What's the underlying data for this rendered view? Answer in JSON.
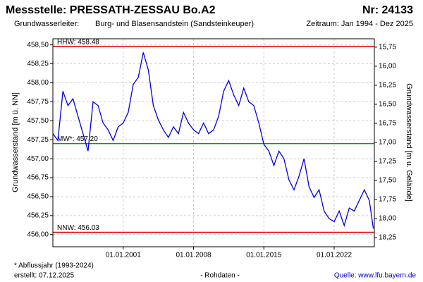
{
  "chart_data": {
    "type": "line",
    "title": "Messstelle: PRESSATH-ZESSAU Bo.A2",
    "number": "Nr: 24133",
    "aquifer_label": "Grundwasserleiter:",
    "aquifer": "Burg- und Blasensandstein (Sandsteinkeuper)",
    "period": "Zeitraum: Jan 1994 - Dez 2025",
    "ylabel": "Grundwasserstand [m ü. NN]",
    "y2label": "Grundwasserstand [m u. Gelände]",
    "footnote": "* Abflussjahr (1993-2024)",
    "created": "erstellt:  07.12.2025",
    "status": "- Rohdaten -",
    "source": "Quelle: www.lfu.bayern.de",
    "grid": true,
    "xlim": [
      1994,
      2026
    ],
    "xticks": [
      {
        "value": 2001,
        "label": "01.01.2001"
      },
      {
        "value": 2008,
        "label": "01.01.2008"
      },
      {
        "value": 2015,
        "label": "01.01.2015"
      },
      {
        "value": 2022,
        "label": "01.01.2022"
      }
    ],
    "ylim": [
      455.84,
      458.58
    ],
    "yticks": [
      {
        "value": 456,
        "label": "456,00"
      },
      {
        "value": 456.25,
        "label": "456,25"
      },
      {
        "value": 456.5,
        "label": "456,50"
      },
      {
        "value": 456.75,
        "label": "456,75"
      },
      {
        "value": 457,
        "label": "457,00"
      },
      {
        "value": 457.25,
        "label": "457,25"
      },
      {
        "value": 457.5,
        "label": "457,50"
      },
      {
        "value": 457.75,
        "label": "457,75"
      },
      {
        "value": 458,
        "label": "458,00"
      },
      {
        "value": 458.25,
        "label": "458,25"
      },
      {
        "value": 458.5,
        "label": "458,50"
      }
    ],
    "y2lim": [
      18.37,
      15.64
    ],
    "y2ticks": [
      {
        "value": 15.75,
        "label": "15,75"
      },
      {
        "value": 16,
        "label": "16,00"
      },
      {
        "value": 16.25,
        "label": "16,25"
      },
      {
        "value": 16.5,
        "label": "16,50"
      },
      {
        "value": 16.75,
        "label": "16,75"
      },
      {
        "value": 17,
        "label": "17,00"
      },
      {
        "value": 17.25,
        "label": "17,25"
      },
      {
        "value": 17.5,
        "label": "17,50"
      },
      {
        "value": 17.75,
        "label": "17,75"
      },
      {
        "value": 18,
        "label": "18,00"
      },
      {
        "value": 18.25,
        "label": "18,25"
      }
    ],
    "reference_lines": [
      {
        "value": 458.48,
        "label": "HHW: 458.48",
        "color": "#e00000"
      },
      {
        "value": 457.2,
        "label": "MW*: 457.20",
        "color": "#00a000"
      },
      {
        "value": 456.03,
        "label": "NNW: 456.03",
        "color": "#e00000"
      }
    ],
    "x": [
      1994,
      1994.5,
      1995,
      1995.5,
      1996,
      1996.5,
      1997,
      1997.5,
      1998,
      1998.5,
      1999,
      1999.5,
      2000,
      2000.5,
      2001,
      2001.5,
      2002,
      2002.5,
      2003,
      2003.5,
      2004,
      2004.5,
      2005,
      2005.5,
      2006,
      2006.5,
      2007,
      2007.5,
      2008,
      2008.5,
      2009,
      2009.5,
      2010,
      2010.5,
      2011,
      2011.5,
      2012,
      2012.5,
      2013,
      2013.5,
      2014,
      2014.5,
      2015,
      2015.5,
      2016,
      2016.5,
      2017,
      2017.5,
      2018,
      2018.5,
      2019,
      2019.5,
      2020,
      2020.5,
      2021,
      2021.5,
      2022,
      2022.5,
      2023,
      2023.5,
      2024,
      2024.5,
      2025,
      2025.5,
      2025.9
    ],
    "series": [
      {
        "color": "#0000e0",
        "values": [
          457.33,
          457.24,
          457.89,
          457.7,
          457.79,
          457.56,
          457.33,
          457.1,
          457.75,
          457.7,
          457.47,
          457.38,
          457.24,
          457.42,
          457.47,
          457.61,
          457.98,
          458.07,
          458.4,
          458.17,
          457.7,
          457.51,
          457.38,
          457.28,
          457.42,
          457.33,
          457.61,
          457.47,
          457.38,
          457.33,
          457.47,
          457.33,
          457.38,
          457.56,
          457.89,
          458.03,
          457.84,
          457.7,
          457.93,
          457.75,
          457.7,
          457.47,
          457.19,
          457.1,
          456.91,
          457.1,
          457,
          456.72,
          456.59,
          456.77,
          457,
          456.63,
          456.49,
          456.59,
          456.31,
          456.21,
          456.17,
          456.31,
          456.12,
          456.35,
          456.31,
          456.45,
          456.59,
          456.45,
          456.08
        ]
      }
    ]
  }
}
